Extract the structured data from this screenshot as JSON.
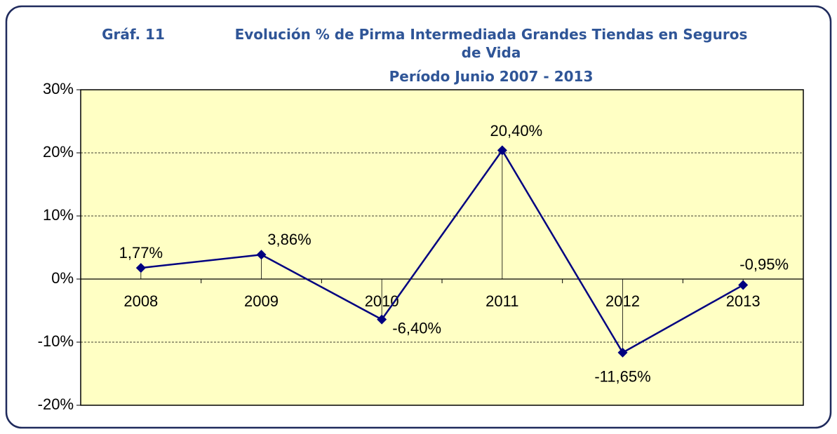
{
  "chart_data": {
    "type": "line",
    "label": "Gráf. 11",
    "title": "Evolución % de Pirma Intermediada Grandes Tiendas en Seguros de Vida",
    "subtitle": "Período Junio 2007 - 2013",
    "categories": [
      "2008",
      "2009",
      "2010",
      "2011",
      "2012",
      "2013"
    ],
    "series": [
      {
        "name": "Evolución",
        "color": "#000080",
        "values": [
          1.77,
          3.86,
          -6.4,
          20.4,
          -11.65,
          -0.95
        ],
        "value_labels": [
          "1,77%",
          "3,86%",
          "-6,40%",
          "20,40%",
          "-11,65%",
          "-0,95%"
        ]
      }
    ],
    "ylim": [
      -20,
      30
    ],
    "yticks": [
      {
        "value": -20,
        "label": "-20%"
      },
      {
        "value": -10,
        "label": "-10%"
      },
      {
        "value": 0,
        "label": "0%"
      },
      {
        "value": 10,
        "label": "10%"
      },
      {
        "value": 20,
        "label": "20%"
      },
      {
        "value": 30,
        "label": "30%"
      }
    ],
    "grid": true
  }
}
